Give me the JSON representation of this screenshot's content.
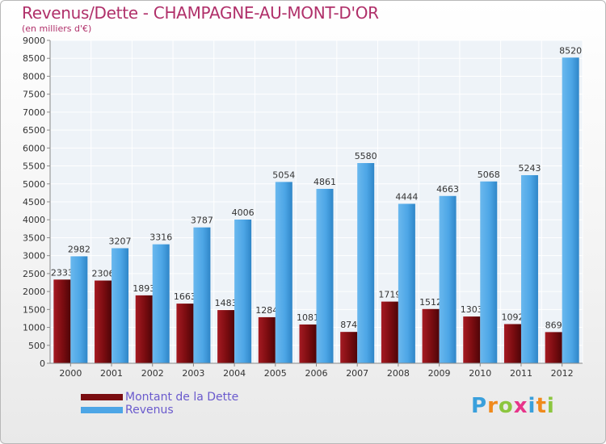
{
  "title": "Revenus/Dette - CHAMPAGNE-AU-MONT-D'OR",
  "subtitle": "(en milliers d'€)",
  "legend": {
    "debt": "Montant de la Dette",
    "revenue": "Revenus"
  },
  "logo": "Proxiti",
  "colors": {
    "debt": "#7a0c10",
    "revenue": "#4da6e6",
    "title": "#b0306a",
    "legend_text": "#6a5acd"
  },
  "chart_data": {
    "type": "bar",
    "title": "Revenus/Dette - CHAMPAGNE-AU-MONT-D'OR",
    "ylabel": "(en milliers d'€)",
    "categories": [
      "2000",
      "2001",
      "2002",
      "2003",
      "2004",
      "2005",
      "2006",
      "2007",
      "2008",
      "2009",
      "2010",
      "2011",
      "2012"
    ],
    "series": [
      {
        "name": "Montant de la Dette",
        "values": [
          2333,
          2306,
          1893,
          1663,
          1483,
          1284,
          1081,
          874,
          1719,
          1512,
          1303,
          1092,
          869
        ],
        "labels": [
          "2333",
          "2306",
          "1893",
          "1663",
          "1483",
          "1284",
          "1081",
          "874",
          "1719",
          "1512",
          "1303",
          "1092",
          "869"
        ]
      },
      {
        "name": "Revenus",
        "values": [
          2982,
          3207,
          3316,
          3787,
          4006,
          5054,
          4861,
          5580,
          4444,
          4663,
          5068,
          5243,
          8520
        ],
        "labels": [
          "2982",
          "3207",
          "3316",
          "3787",
          "4006",
          "5054",
          "4861",
          "5580",
          "4444",
          "4663",
          "5068",
          "5243",
          "8520"
        ]
      }
    ],
    "ylim": [
      0,
      9000
    ],
    "yticks": [
      "0",
      "500",
      "1000",
      "1500",
      "2000",
      "2500",
      "3000",
      "3500",
      "4000",
      "4500",
      "5000",
      "5500",
      "6000",
      "6500",
      "7000",
      "7500",
      "8000",
      "8500",
      "9000"
    ],
    "grid": true,
    "legend": "bottom-left"
  }
}
